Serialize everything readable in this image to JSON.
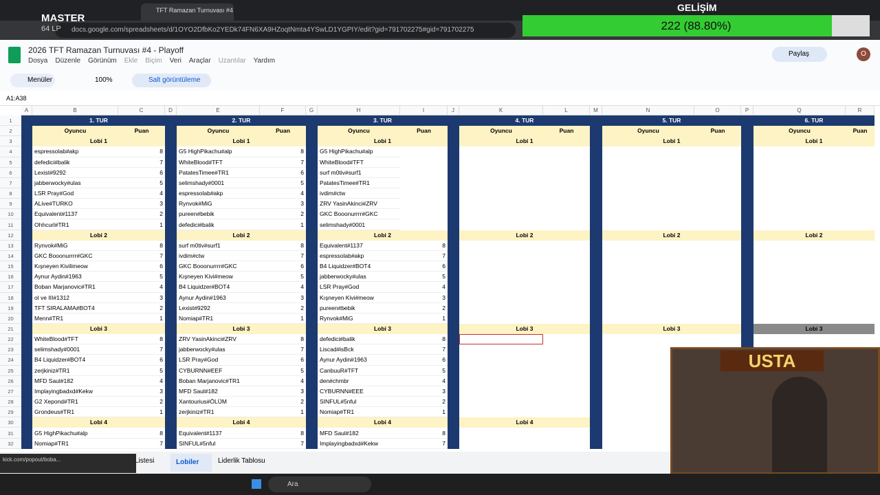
{
  "overlay": {
    "rank": "MASTER",
    "lp": "64 LP",
    "progress_title": "GELİŞİM",
    "progress_value": "222 (88.80%)"
  },
  "browser": {
    "tab": "TFT Ramazan Turnuvası #4 ...",
    "url": "docs.google.com/spreadsheets/d/1OYO2DfbKo2YEDk74FN6XA9HZoqtNmta4YSwLD1YGPIY/edit?gid=791702275#gid=791702275"
  },
  "doc": {
    "title": "2026 TFT Ramazan Turnuvası #4 - Playoff",
    "menus": [
      "Dosya",
      "Düzenle",
      "Görünüm",
      "Ekle",
      "Biçim",
      "Veri",
      "Araçlar",
      "Uzantılar",
      "Yardım"
    ],
    "menu_search": "Menüler",
    "zoom": "100%",
    "view_only": "Salt görüntüleme",
    "share": "Paylaş",
    "cell_ref": "A1:A38",
    "avatar": "O"
  },
  "sheet": {
    "columns": [
      "A",
      "B",
      "C",
      "D",
      "E",
      "F",
      "G",
      "H",
      "I",
      "J",
      "K",
      "L",
      "M",
      "N",
      "O",
      "P",
      "Q",
      "R"
    ],
    "row_numbers": [
      1,
      2,
      3,
      4,
      5,
      6,
      7,
      8,
      9,
      10,
      11,
      12,
      13,
      14,
      15,
      16,
      17,
      18,
      19,
      20,
      21,
      22,
      23,
      24,
      25,
      26,
      27,
      28,
      29,
      30,
      31,
      32
    ],
    "rounds": [
      {
        "title": "1. TUR",
        "headers": [
          "Oyuncu",
          "Puan"
        ],
        "lobbies": [
          {
            "name": "Lobi 1",
            "rows": [
              [
                "espressolab#akp",
                8
              ],
              [
                "defedici#balik",
                7
              ],
              [
                "Lexist#9292",
                6
              ],
              [
                "jabberwocky#ulas",
                5
              ],
              [
                "LSR Pray#God",
                4
              ],
              [
                "ALive#TURKO",
                3
              ],
              [
                "Equivalent#1137",
                2
              ],
              [
                "Ohhcurl#TR1",
                1
              ]
            ]
          },
          {
            "name": "Lobi 2",
            "rows": [
              [
                "Rynvok#MiG",
                8
              ],
              [
                "GKC Booonurrrr#GKC",
                7
              ],
              [
                "Kışneyen Kivilimeow",
                6
              ],
              [
                "Aynur Aydin#1963",
                5
              ],
              [
                "Boban Marjanovic#TR1",
                4
              ],
              [
                "ol ve III#1312",
                3
              ],
              [
                "TFT SIRALAMA#BOT4",
                2
              ],
              [
                "Menn#TR1",
                1
              ]
            ]
          },
          {
            "name": "Lobi 3",
            "rows": [
              [
                "WhiteBlood#TFT",
                8
              ],
              [
                "selimshady#0001",
                7
              ],
              [
                "B4 Liquidzer#BOT4",
                6
              ],
              [
                "zerjkiniz#TR1",
                5
              ],
              [
                "MFD Saul#182",
                4
              ],
              [
                "Implayingbadxd#Kekw",
                3
              ],
              [
                "G2 Xepond#TR1",
                2
              ],
              [
                "Grondeus#TR1",
                1
              ]
            ]
          },
          {
            "name": "Lobi 4",
            "rows": [
              [
                "G5 HighPikachu#alp",
                8
              ],
              [
                "Nomiap#TR1",
                7
              ]
            ]
          }
        ]
      },
      {
        "title": "2. TUR",
        "headers": [
          "Oyuncu",
          "Puan"
        ],
        "lobbies": [
          {
            "name": "Lobi 1",
            "rows": [
              [
                "G5 HighPikachu#alp",
                8
              ],
              [
                "WhiteBlood#TFT",
                7
              ],
              [
                "PatatesTimee#TR1",
                6
              ],
              [
                "selimshady#0001",
                5
              ],
              [
                "espressolab#akp",
                4
              ],
              [
                "Rynvok#MiG",
                3
              ],
              [
                "pureen#bebik",
                2
              ],
              [
                "defedici#balik",
                1
              ]
            ]
          },
          {
            "name": "Lobi 2",
            "rows": [
              [
                "surf m0tiv#surf1",
                8
              ],
              [
                "ivdim#ctw",
                7
              ],
              [
                "GKC Booonurrrr#GKC",
                6
              ],
              [
                "Kışneyen Kivi#meow",
                5
              ],
              [
                "B4 Liquidzer#BOT4",
                4
              ],
              [
                "Aynur Aydin#1963",
                3
              ],
              [
                "Lexist#9292",
                2
              ],
              [
                "Nomiap#TR1",
                1
              ]
            ]
          },
          {
            "name": "Lobi 3",
            "rows": [
              [
                "ZRV YasinAkinci#ZRV",
                8
              ],
              [
                "jabberwocky#ulas",
                7
              ],
              [
                "LSR Pray#God",
                6
              ],
              [
                "CYBURNN#EEF",
                5
              ],
              [
                "Boban Marjanovic#TR1",
                4
              ],
              [
                "MFD Saul#182",
                3
              ],
              [
                "Xantourius#ÖLÜM",
                2
              ],
              [
                "zerjkiniz#TR1",
                1
              ]
            ]
          },
          {
            "name": "Lobi 4",
            "rows": [
              [
                "Equivalent#1137",
                8
              ],
              [
                "SINFUL#5nful",
                7
              ]
            ]
          }
        ]
      },
      {
        "title": "3. TUR",
        "headers": [
          "Oyuncu",
          "Puan"
        ],
        "lobbies": [
          {
            "name": "Lobi 1",
            "rows": [
              [
                "G5 HighPikachu#alp"
              ],
              [
                "WhiteBlood#TFT"
              ],
              [
                "surf m0tiv#surf1"
              ],
              [
                "PatatesTimee#TR1"
              ],
              [
                "ivdim#ctw"
              ],
              [
                "ZRV YasinAkinci#ZRV"
              ],
              [
                "GKC Booonurrrr#GKC"
              ],
              [
                "selimshady#0001"
              ]
            ]
          },
          {
            "name": "Lobi 2",
            "rows": [
              [
                "Equivalent#1137",
                8
              ],
              [
                "espressolab#akp",
                7
              ],
              [
                "B4 Liquidzer#BOT4",
                6
              ],
              [
                "jabberwocky#ulas",
                5
              ],
              [
                "LSR Pray#God",
                4
              ],
              [
                "Kışneyen Kivi#meow",
                3
              ],
              [
                "pureen#bebik",
                2
              ],
              [
                "Rynvok#MiG",
                1
              ]
            ]
          },
          {
            "name": "Lobi 3",
            "rows": [
              [
                "defedici#balik",
                8
              ],
              [
                "Liscad#isBck",
                7
              ],
              [
                "Aynur Aydin#1963",
                6
              ],
              [
                "CanbuuR#TFT",
                5
              ],
              [
                "den#chmbr",
                4
              ],
              [
                "CYBURNN#EEE",
                3
              ],
              [
                "SINFUL#5nful",
                2
              ],
              [
                "Nomiap#TR1",
                1
              ]
            ]
          },
          {
            "name": "Lobi 4",
            "rows": [
              [
                "MFD Saul#182",
                8
              ],
              [
                "Implayingbadxd#Kekw",
                7
              ]
            ]
          }
        ]
      },
      {
        "title": "4. TUR",
        "headers": [
          "Oyuncu",
          "Puan"
        ],
        "lobbies": [
          {
            "name": "Lobi 1"
          },
          {
            "name": "Lobi 2"
          },
          {
            "name": "Lobi 3"
          },
          {
            "name": "Lobi 4"
          }
        ]
      },
      {
        "title": "5. TUR",
        "headers": [
          "Oyuncu",
          "Puan"
        ],
        "lobbies": [
          {
            "name": "Lobi 1"
          },
          {
            "name": "Lobi 2"
          },
          {
            "name": "Lobi 3"
          }
        ]
      },
      {
        "title": "6. TUR",
        "headers": [
          "Oyuncu",
          "Puan"
        ],
        "lobbies": [
          {
            "name": "Lobi 1"
          },
          {
            "name": "Lobi 2"
          },
          {
            "name": "Lobi 3"
          }
        ]
      }
    ],
    "tabs": [
      "Listesi",
      "Lobiler",
      "Liderlik Tablosu"
    ]
  },
  "stream": {
    "webcam_title": "USTA",
    "popout": "kick.com/popout/boba..."
  },
  "taskbar": {
    "search": "Ara"
  }
}
